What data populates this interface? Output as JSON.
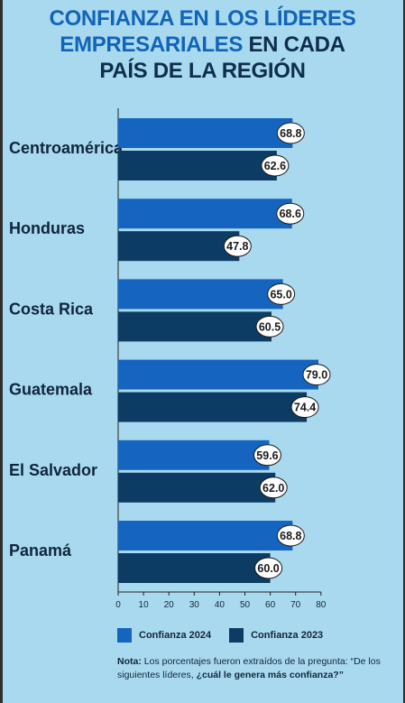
{
  "title": {
    "line1": "CONFIANZA EN LOS LÍDERES",
    "line2_a": "EMPRESARIALES",
    "line2_b": " EN CADA",
    "line3": "PAÍS DE LA REGIÓN"
  },
  "colors": {
    "background": "#a9d9ee",
    "series_2024": "#1565c0",
    "series_2023": "#0c3c63",
    "title_blue": "#1164b8",
    "title_dark": "#0e2d4f"
  },
  "chart_data": {
    "type": "bar",
    "orientation": "horizontal",
    "categories": [
      "Centroamérica",
      "Honduras",
      "Costa Rica",
      "Guatemala",
      "El Salvador",
      "Panamá"
    ],
    "series": [
      {
        "name": "Confianza 2024",
        "values": [
          68.8,
          68.6,
          65.0,
          79.0,
          59.6,
          68.8
        ]
      },
      {
        "name": "Confianza 2023",
        "values": [
          62.6,
          47.8,
          60.5,
          74.4,
          62.0,
          60.0
        ]
      }
    ],
    "data_labels_2024": [
      "68.8",
      "68.6",
      "65.0",
      "79.0",
      "59.6",
      "68.8"
    ],
    "data_labels_2023": [
      "62.6",
      "47.8",
      "60.5",
      "74.4",
      "62.0",
      "60.0"
    ],
    "xlim": [
      0,
      80
    ],
    "xticks": [
      "0",
      "10",
      "20",
      "30",
      "40",
      "50",
      "60",
      "70",
      "80"
    ],
    "grid": false,
    "legend_position": "bottom"
  },
  "legend": {
    "label_2024": "Confianza 2024",
    "label_2023": "Confianza 2023"
  },
  "note": {
    "label": "Nota:",
    "text": " Los porcentajes fueron extraídos de la pregunta: “De los siguientes líderes, ",
    "question": "¿cuál le genera más confianza?”"
  }
}
